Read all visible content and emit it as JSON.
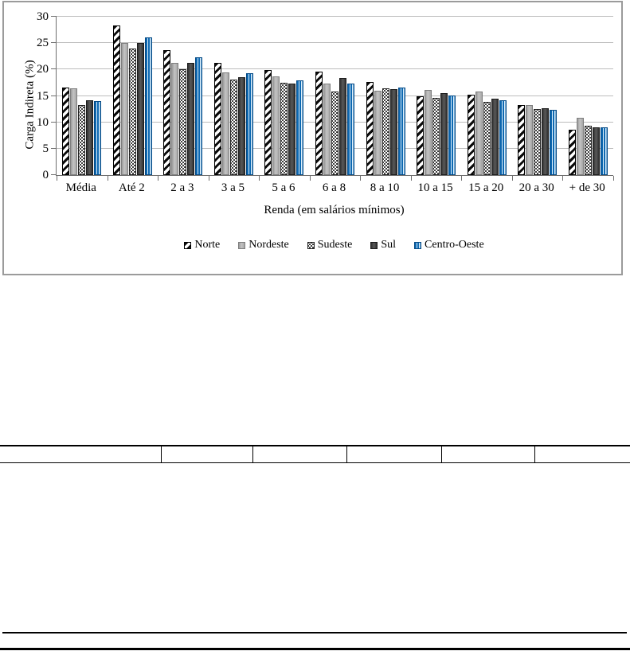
{
  "chart_data": {
    "type": "bar",
    "title": "",
    "xlabel": "Renda (em salários mínimos)",
    "ylabel": "Carga Indireta (%)",
    "ylim": [
      0,
      30
    ],
    "yticks": [
      0,
      5,
      10,
      15,
      20,
      25,
      30
    ],
    "grid": true,
    "legend_position": "bottom",
    "categories": [
      "Média",
      "Até 2",
      "2 a 3",
      "3 a 5",
      "5 a 6",
      "6 a 8",
      "8 a 10",
      "10 a 15",
      "15 a 20",
      "20 a 30",
      "+ de 30"
    ],
    "series": [
      {
        "name": "Norte",
        "fill": {
          "style": "diagonal-stripes",
          "fg": "#000000",
          "bg": "#ffffff"
        },
        "values": [
          16.6,
          28.4,
          23.6,
          21.2,
          19.9,
          19.6,
          17.6,
          15.0,
          15.3,
          13.2,
          8.6
        ]
      },
      {
        "name": "Nordeste",
        "fill": {
          "style": "solid",
          "color": "#b2b2b2"
        },
        "values": [
          16.4,
          25.1,
          21.2,
          19.4,
          18.7,
          17.3,
          16.0,
          16.1,
          15.9,
          13.3,
          10.8
        ]
      },
      {
        "name": "Sudeste",
        "fill": {
          "style": "dots",
          "fg": "#000000",
          "bg": "#ffffff"
        },
        "values": [
          13.3,
          23.9,
          20.1,
          18.1,
          17.5,
          15.9,
          16.5,
          14.6,
          13.8,
          12.5,
          9.3
        ]
      },
      {
        "name": "Sul",
        "fill": {
          "style": "solid",
          "color": "#404040"
        },
        "values": [
          14.1,
          25.0,
          21.3,
          18.6,
          17.3,
          18.4,
          16.3,
          15.6,
          14.5,
          12.6,
          9.0
        ]
      },
      {
        "name": "Centro-Oeste",
        "fill": {
          "style": "vertical-stripes",
          "fg": "#0d68b1",
          "bg": "#dff0fb"
        },
        "values": [
          14.0,
          26.1,
          22.3,
          19.3,
          17.9,
          17.4,
          16.6,
          15.1,
          14.2,
          12.3,
          9.0
        ]
      }
    ]
  },
  "table": {
    "cells": [
      "",
      "",
      "",
      "",
      "",
      ""
    ]
  }
}
